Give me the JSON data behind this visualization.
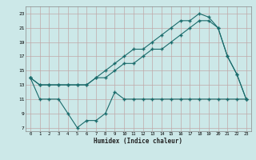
{
  "line1_x": [
    0,
    1,
    2,
    3,
    4,
    5,
    6,
    7,
    8,
    9,
    10,
    11,
    12,
    13,
    14,
    15,
    16,
    17,
    18,
    19,
    20,
    21,
    22,
    23
  ],
  "line1_y": [
    14,
    13,
    13,
    13,
    13,
    13,
    13,
    14,
    14,
    15,
    16,
    16,
    17,
    18,
    18,
    19,
    20,
    21,
    22,
    22,
    21,
    17,
    14.5,
    11
  ],
  "line2_x": [
    0,
    1,
    2,
    3,
    4,
    5,
    6,
    7,
    8,
    9,
    10,
    11,
    12,
    13,
    14,
    15,
    16,
    17,
    18,
    19,
    20,
    21,
    22,
    23
  ],
  "line2_y": [
    14,
    13,
    13,
    13,
    13,
    13,
    13,
    14,
    15,
    16,
    17,
    18,
    18,
    19,
    20,
    21,
    22,
    22,
    23,
    22.5,
    21,
    17,
    14.5,
    11
  ],
  "line3_x": [
    0,
    1,
    2,
    3,
    4,
    5,
    6,
    7,
    8,
    9,
    10,
    11,
    12,
    13,
    14,
    15,
    16,
    17,
    18,
    19,
    20,
    21,
    22,
    23
  ],
  "line3_y": [
    14,
    11,
    11,
    11,
    9,
    7,
    8,
    8,
    9,
    12,
    11,
    11,
    11,
    11,
    11,
    11,
    11,
    11,
    11,
    11,
    11,
    11,
    11,
    11
  ],
  "color": "#1a6b6b",
  "bg_color": "#cce8e8",
  "grid_color": "#c0a8a8",
  "xlabel": "Humidex (Indice chaleur)",
  "ylabel_ticks": [
    7,
    9,
    11,
    13,
    15,
    17,
    19,
    21,
    23
  ],
  "xlim": [
    -0.5,
    23.5
  ],
  "ylim": [
    6.5,
    24.0
  ]
}
